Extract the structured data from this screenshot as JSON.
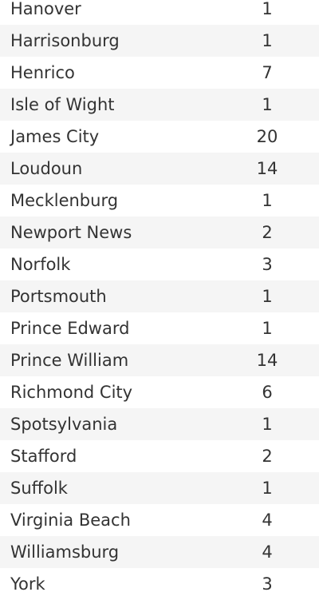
{
  "rows": [
    {
      "name": "Hanover",
      "count": "1"
    },
    {
      "name": "Harrisonburg",
      "count": "1"
    },
    {
      "name": "Henrico",
      "count": "7"
    },
    {
      "name": "Isle of Wight",
      "count": "1"
    },
    {
      "name": "James City",
      "count": "20"
    },
    {
      "name": "Loudoun",
      "count": "14"
    },
    {
      "name": "Mecklenburg",
      "count": "1"
    },
    {
      "name": "Newport News",
      "count": "2"
    },
    {
      "name": "Norfolk",
      "count": "3"
    },
    {
      "name": "Portsmouth",
      "count": "1"
    },
    {
      "name": "Prince Edward",
      "count": "1"
    },
    {
      "name": "Prince William",
      "count": "14"
    },
    {
      "name": "Richmond City",
      "count": "6"
    },
    {
      "name": "Spotsylvania",
      "count": "1"
    },
    {
      "name": "Stafford",
      "count": "2"
    },
    {
      "name": "Suffolk",
      "count": "1"
    },
    {
      "name": "Virginia Beach",
      "count": "4"
    },
    {
      "name": "Williamsburg",
      "count": "4"
    },
    {
      "name": "York",
      "count": "3"
    }
  ]
}
